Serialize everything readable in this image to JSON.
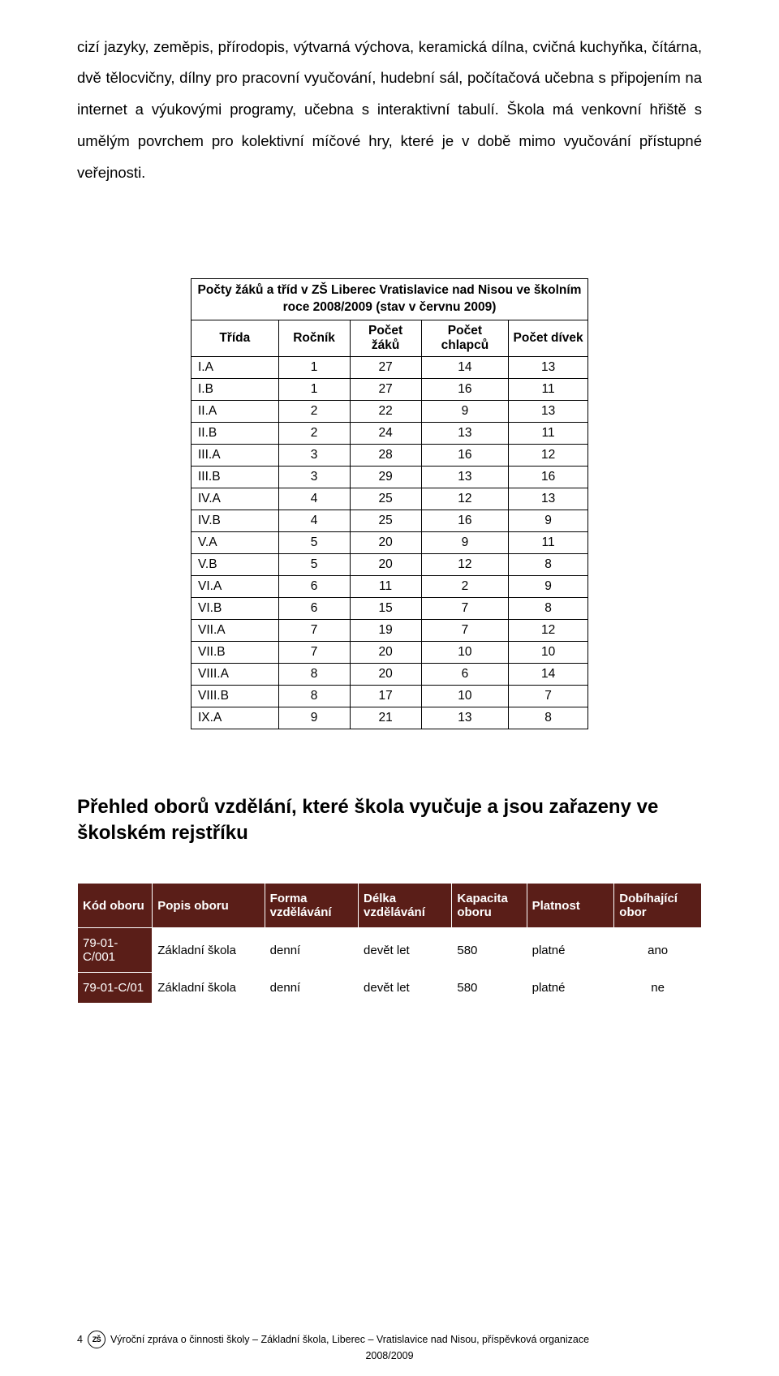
{
  "body_text": "cizí jazyky, zeměpis, přírodopis, výtvarná výchova, keramická dílna, cvičná kuchyňka, čítárna, dvě tělocvičny, dílny pro pracovní vyučování, hudební sál, počítačová učebna s připojením na internet a výukovými programy, učebna s interaktivní tabulí. Škola má venkovní hřiště s umělým povrchem pro kolektivní míčové hry, které je v době mimo vyučování přístupné veřejnosti.",
  "table1": {
    "caption": "Počty žáků a tříd v ZŠ Liberec Vratislavice nad Nisou ve školním roce 2008/2009 (stav v červnu 2009)",
    "headers": [
      "Třída",
      "Ročník",
      "Počet žáků",
      "Počet chlapců",
      "Počet dívek"
    ],
    "rows": [
      [
        "I.A",
        "1",
        "27",
        "14",
        "13"
      ],
      [
        "I.B",
        "1",
        "27",
        "16",
        "11"
      ],
      [
        "II.A",
        "2",
        "22",
        "9",
        "13"
      ],
      [
        "II.B",
        "2",
        "24",
        "13",
        "11"
      ],
      [
        "III.A",
        "3",
        "28",
        "16",
        "12"
      ],
      [
        "III.B",
        "3",
        "29",
        "13",
        "16"
      ],
      [
        "IV.A",
        "4",
        "25",
        "12",
        "13"
      ],
      [
        "IV.B",
        "4",
        "25",
        "16",
        "9"
      ],
      [
        "V.A",
        "5",
        "20",
        "9",
        "11"
      ],
      [
        "V.B",
        "5",
        "20",
        "12",
        "8"
      ],
      [
        "VI.A",
        "6",
        "11",
        "2",
        "9"
      ],
      [
        "VI.B",
        "6",
        "15",
        "7",
        "8"
      ],
      [
        "VII.A",
        "7",
        "19",
        "7",
        "12"
      ],
      [
        "VII.B",
        "7",
        "20",
        "10",
        "10"
      ],
      [
        "VIII.A",
        "8",
        "20",
        "6",
        "14"
      ],
      [
        "VIII.B",
        "8",
        "17",
        "10",
        "7"
      ],
      [
        "IX.A",
        "9",
        "21",
        "13",
        "8"
      ]
    ]
  },
  "heading": "Přehled oborů vzdělání, které škola vyučuje a jsou zařazeny ve školském rejstříku",
  "table2": {
    "headers": [
      "Kód oboru",
      "Popis oboru",
      "Forma vzdělávání",
      "Délka vzdělávání",
      "Kapacita oboru",
      "Platnost",
      "Dobíhající obor"
    ],
    "rows": [
      [
        "79-01-C/001",
        "Základní škola",
        "denní",
        "devět let",
        "580",
        "platné",
        "ano"
      ],
      [
        "79-01-C/01",
        "Základní škola",
        "denní",
        "devět let",
        "580",
        "platné",
        "ne"
      ]
    ],
    "col_widths": [
      "12%",
      "18%",
      "15%",
      "15%",
      "12%",
      "14%",
      "14%"
    ],
    "header_bg": "#5a1e18",
    "header_color": "#ffffff"
  },
  "footer": {
    "page": "4",
    "logo_text": "ZŠ",
    "line1": "Výroční zpráva o činnosti školy – Základní škola, Liberec – Vratislavice nad Nisou, příspěvková organizace",
    "line2": "2008/2009"
  }
}
